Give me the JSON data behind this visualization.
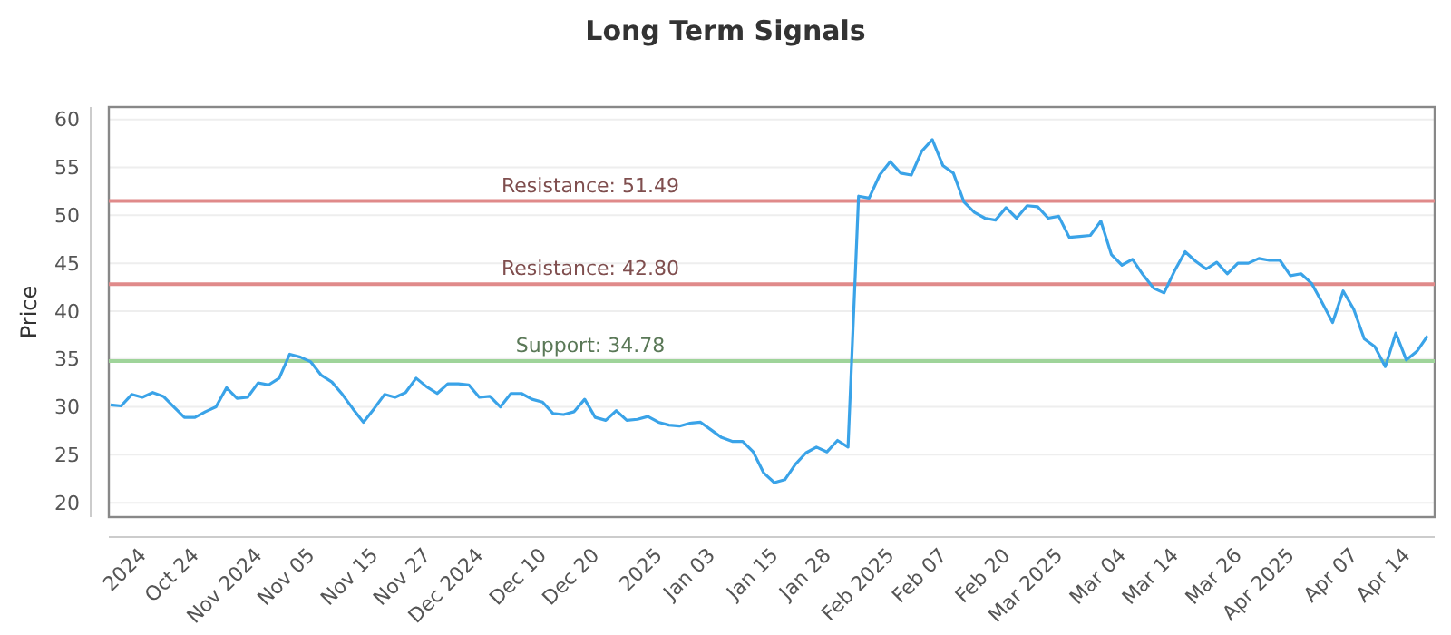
{
  "chart_data": {
    "type": "line",
    "title": "Long Term Signals",
    "ylabel": "Price",
    "categories": [
      null,
      null,
      null,
      "2024",
      null,
      null,
      null,
      null,
      "Oct 24",
      null,
      null,
      null,
      null,
      null,
      "Nov 2024",
      null,
      null,
      null,
      null,
      "Nov 05",
      null,
      null,
      null,
      null,
      null,
      "Nov 15",
      null,
      null,
      null,
      null,
      "Nov 27",
      null,
      null,
      null,
      null,
      "Dec 2024",
      null,
      null,
      null,
      null,
      null,
      "Dec 10",
      null,
      null,
      null,
      null,
      "Dec 20",
      null,
      null,
      null,
      null,
      null,
      "2025",
      null,
      null,
      null,
      null,
      "Jan 03",
      null,
      null,
      null,
      null,
      null,
      "Jan 15",
      null,
      null,
      null,
      null,
      "Jan 28",
      null,
      null,
      null,
      null,
      null,
      "Feb 2025",
      null,
      null,
      null,
      null,
      "Feb 07",
      null,
      null,
      null,
      null,
      null,
      "Feb 20",
      null,
      null,
      null,
      null,
      "Mar 2025",
      null,
      null,
      null,
      null,
      null,
      "Mar 04",
      null,
      null,
      null,
      null,
      "Mar 14",
      null,
      null,
      null,
      null,
      null,
      "Mar 26",
      null,
      null,
      null,
      null,
      "Apr 2025",
      null,
      null,
      null,
      null,
      null,
      "Apr 07",
      null,
      null,
      null,
      null,
      "Apr 14",
      null,
      null
    ],
    "series": [
      {
        "color": "#3aa3e8",
        "values": [
          30.2,
          30.1,
          31.3,
          31.0,
          31.5,
          31.1,
          30.0,
          28.9,
          28.9,
          29.5,
          30.0,
          32.0,
          30.9,
          31.0,
          32.5,
          32.3,
          33.0,
          35.5,
          35.2,
          34.7,
          33.3,
          32.6,
          31.3,
          29.8,
          28.4,
          29.8,
          31.3,
          31.0,
          31.5,
          33.0,
          32.1,
          31.4,
          32.4,
          32.4,
          32.3,
          31.0,
          31.1,
          30.0,
          31.4,
          31.4,
          30.8,
          30.5,
          29.3,
          29.2,
          29.5,
          30.8,
          28.9,
          28.6,
          29.6,
          28.6,
          28.7,
          29.0,
          28.4,
          28.1,
          28.0,
          28.3,
          28.4,
          27.6,
          26.8,
          26.4,
          26.4,
          25.3,
          23.1,
          22.1,
          22.4,
          24.0,
          25.2,
          25.8,
          25.3,
          26.5,
          25.8,
          52.0,
          51.8,
          54.2,
          55.6,
          54.4,
          54.2,
          56.7,
          57.9,
          55.2,
          54.4,
          51.4,
          50.3,
          49.7,
          49.5,
          50.8,
          49.7,
          51.0,
          50.9,
          49.7,
          49.9,
          47.7,
          47.8,
          47.9,
          49.4,
          45.9,
          44.8,
          45.4,
          43.8,
          42.4,
          41.9,
          44.2,
          46.2,
          45.2,
          44.4,
          45.1,
          43.9,
          45.0,
          45.0,
          45.5,
          45.3,
          45.3,
          43.7,
          43.9,
          42.9,
          40.9,
          38.8,
          42.1,
          40.2,
          37.1,
          36.3,
          34.2,
          37.7,
          34.9,
          35.8,
          37.4
        ]
      }
    ],
    "ylim": [
      18.5,
      61.3
    ],
    "yticks": [
      20,
      25,
      30,
      35,
      40,
      45,
      50,
      55,
      60
    ],
    "grid": "y",
    "ref_lines": [
      {
        "axis": "y",
        "value": 51.49,
        "label": "Resistance: 51.49",
        "color": "#e08a8a"
      },
      {
        "axis": "y",
        "value": 42.8,
        "label": "Resistance: 42.80",
        "color": "#e08a8a"
      },
      {
        "axis": "y",
        "value": 34.78,
        "label": "Support: 34.78",
        "color": "#9fd49a"
      }
    ]
  }
}
